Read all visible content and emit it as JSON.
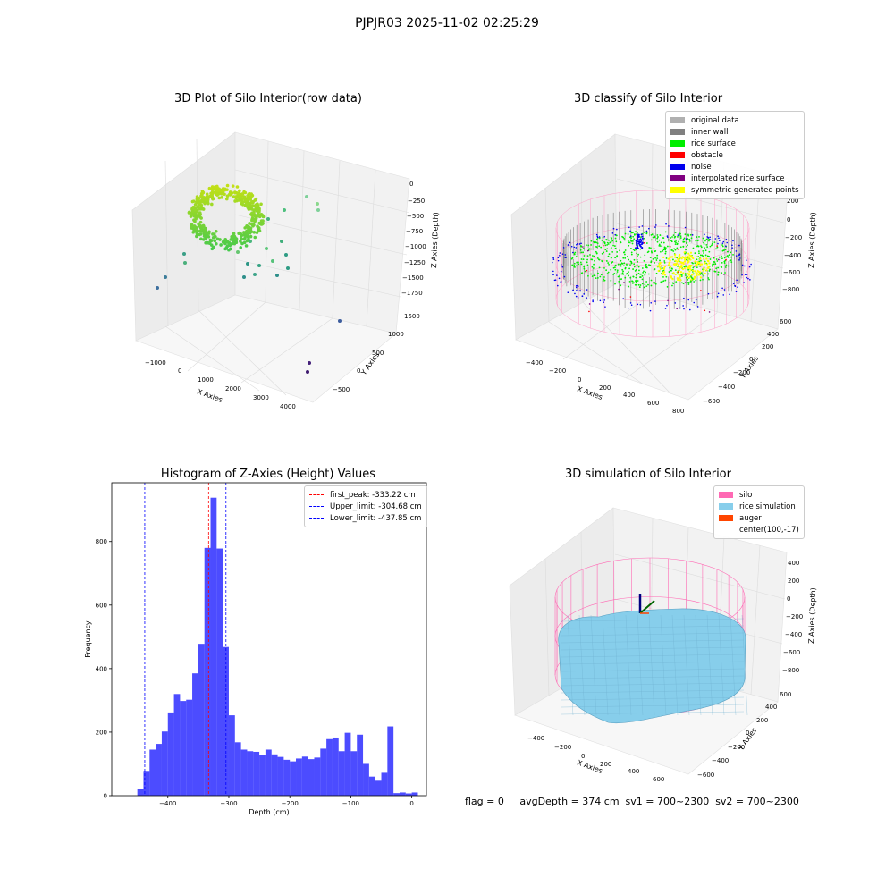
{
  "suptitle": "PJPJR03 2025-11-02 02:25:29",
  "footer": "flag = 0     avgDepth = 374 cm  sv1 = 700~2300  sv2 = 700~2300",
  "chart_data": [
    {
      "type": "scatter",
      "title": "3D Plot of Silo Interior(row data)",
      "xlabel": "X Axies",
      "ylabel": "Y Axies",
      "zlabel": "Z Axies (Depth)",
      "x_ticks": [
        "−1000",
        "0",
        "1000",
        "2000",
        "3000",
        "4000"
      ],
      "y_ticks": [
        "−500",
        "0",
        "500",
        "1000",
        "1500"
      ],
      "z_ticks": [
        "0",
        "−250",
        "−500",
        "−750",
        "−1000",
        "−1250",
        "−1500",
        "−1750"
      ]
    },
    {
      "type": "scatter",
      "title": "3D classify of Silo Interior",
      "xlabel": "X Axies",
      "ylabel": "Y Axies",
      "zlabel": "Z Axies (Depth)",
      "x_ticks": [
        "−400",
        "−200",
        "0",
        "200",
        "400",
        "600",
        "800"
      ],
      "y_ticks": [
        "−600",
        "−400",
        "−200",
        "0",
        "200",
        "400",
        "600"
      ],
      "z_ticks": [
        "200",
        "0",
        "−200",
        "−400",
        "−600",
        "−800"
      ],
      "legend": [
        {
          "label": "original data",
          "color": "#b0b0b0"
        },
        {
          "label": "inner wall",
          "color": "#808080"
        },
        {
          "label": "rice surface",
          "color": "#00ee00"
        },
        {
          "label": "obstacle",
          "color": "#ff0000"
        },
        {
          "label": "noise",
          "color": "#0000ee"
        },
        {
          "label": "interpolated rice surface",
          "color": "#800080"
        },
        {
          "label": "symmetric generated points",
          "color": "#ffff00"
        }
      ]
    },
    {
      "type": "bar",
      "title": "Histogram of Z-Axies (Height) Values",
      "xlabel": "Depth (cm)",
      "ylabel": "Frequency",
      "xlim": [
        -492,
        24
      ],
      "ylim": [
        0,
        985
      ],
      "x_ticks": [
        -400,
        -300,
        -200,
        -100,
        0
      ],
      "y_ticks": [
        0,
        200,
        400,
        600,
        800
      ],
      "bin_width": 10,
      "bin_starts": [
        -450,
        -440,
        -430,
        -420,
        -410,
        -400,
        -390,
        -380,
        -370,
        -360,
        -350,
        -340,
        -330,
        -320,
        -310,
        -300,
        -290,
        -280,
        -270,
        -260,
        -250,
        -240,
        -230,
        -220,
        -210,
        -200,
        -190,
        -180,
        -170,
        -160,
        -150,
        -140,
        -130,
        -120,
        -110,
        -100,
        -90,
        -80,
        -70,
        -60,
        -50,
        -40,
        -30,
        -20,
        -10,
        0
      ],
      "values": [
        20,
        78,
        145,
        163,
        202,
        262,
        320,
        298,
        302,
        385,
        478,
        780,
        938,
        778,
        468,
        253,
        168,
        145,
        140,
        138,
        128,
        145,
        130,
        122,
        113,
        108,
        117,
        123,
        115,
        120,
        148,
        178,
        183,
        140,
        198,
        140,
        192,
        100,
        60,
        47,
        72,
        218,
        8,
        10,
        7,
        10
      ],
      "bar_color": "#0000ff",
      "legend": [
        {
          "label": "first_peak: -333.22 cm",
          "value": -333.22,
          "color": "#ff0000"
        },
        {
          "label": "Upper_limit: -304.68 cm",
          "value": -304.68,
          "color": "#0000ff"
        },
        {
          "label": "Lower_limit: -437.85 cm",
          "value": -437.85,
          "color": "#0000ff"
        }
      ],
      "legend_position": "top-right"
    },
    {
      "type": "area",
      "title": "3D simulation of Silo Interior",
      "xlabel": "X Axies",
      "ylabel": "Y Axies",
      "zlabel": "Z Axies (Depth)",
      "x_ticks": [
        "−400",
        "−200",
        "0",
        "200",
        "400",
        "600"
      ],
      "y_ticks": [
        "−600",
        "−400",
        "−200",
        "0",
        "200",
        "400",
        "600"
      ],
      "z_ticks": [
        "400",
        "200",
        "0",
        "−200",
        "−400",
        "−600",
        "−800"
      ],
      "legend": [
        {
          "label": "silo",
          "color": "#ff69b4"
        },
        {
          "label": "rice simulation",
          "color": "#87ceeb"
        },
        {
          "label": "auger",
          "color": "#ff4500"
        },
        {
          "label": "center(100,-17)",
          "color": ""
        }
      ]
    }
  ]
}
